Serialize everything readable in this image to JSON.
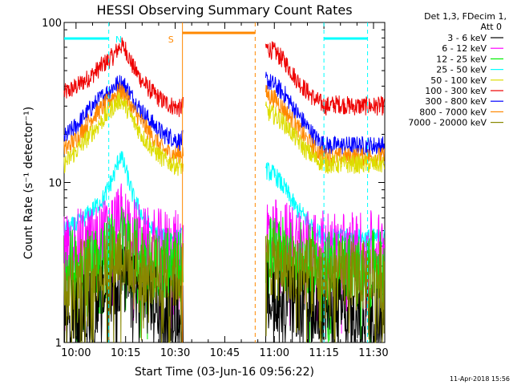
{
  "chart_data": {
    "type": "line",
    "title": "HESSI Observing Summary Count Rates",
    "xlabel": "Start Time (03-Jun-16 09:56:22)",
    "ylabel": "Count Rate (s⁻¹ detector⁻¹)",
    "y_scale": "log",
    "ylim": [
      1,
      100
    ],
    "xlim_minutes_after_0956": [
      0,
      97
    ],
    "x_ticks": [
      {
        "label": "10:00",
        "t": 3.6
      },
      {
        "label": "10:15",
        "t": 18.6
      },
      {
        "label": "10:30",
        "t": 33.6
      },
      {
        "label": "10:45",
        "t": 48.6
      },
      {
        "label": "11:00",
        "t": 63.6
      },
      {
        "label": "11:15",
        "t": 78.6
      },
      {
        "label": "11:30",
        "t": 93.6
      }
    ],
    "y_ticks": [
      {
        "label": "1",
        "v": 1
      },
      {
        "label": "10",
        "v": 10
      },
      {
        "label": "100",
        "v": 100
      }
    ],
    "legend": {
      "placement": "top-right",
      "header": [
        "Det 1,3, FDecim 1,",
        "Att 0"
      ],
      "entries": [
        {
          "name": "3 - 6 keV",
          "color": "#000000"
        },
        {
          "name": "6 - 12 keV",
          "color": "#ff00ff"
        },
        {
          "name": "12 - 25 keV",
          "color": "#00ee00"
        },
        {
          "name": "25 - 50 keV",
          "color": "#00ffff"
        },
        {
          "name": "50 - 100 keV",
          "color": "#dddd00"
        },
        {
          "name": "100 - 300 keV",
          "color": "#ee0000"
        },
        {
          "name": "300 - 800 keV",
          "color": "#0000ff"
        },
        {
          "name": "800 - 7000 keV",
          "color": "#ff8800"
        },
        {
          "name": "7000 - 20000 keV",
          "color": "#888800"
        }
      ]
    },
    "segments": [
      [
        0,
        36
      ],
      [
        61,
        97
      ]
    ],
    "series": [
      {
        "name": "100 - 300 keV",
        "color": "#ee0000",
        "points": [
          [
            0,
            36
          ],
          [
            4,
            40
          ],
          [
            8,
            46
          ],
          [
            12,
            55
          ],
          [
            15,
            62
          ],
          [
            17,
            72
          ],
          [
            18.6,
            68
          ],
          [
            21,
            52
          ],
          [
            24,
            42
          ],
          [
            27,
            36
          ],
          [
            30,
            32
          ],
          [
            33,
            30
          ],
          [
            35,
            29
          ],
          [
            61,
            70
          ],
          [
            64,
            65
          ],
          [
            67,
            56
          ],
          [
            70,
            45
          ],
          [
            73,
            38
          ],
          [
            76,
            33
          ],
          [
            79,
            30
          ],
          [
            83,
            31
          ],
          [
            87,
            30
          ],
          [
            91,
            30
          ],
          [
            97,
            30
          ]
        ]
      },
      {
        "name": "300 - 800 keV",
        "color": "#0000ff",
        "points": [
          [
            0,
            19
          ],
          [
            4,
            23
          ],
          [
            8,
            29
          ],
          [
            12,
            35
          ],
          [
            15,
            40
          ],
          [
            17,
            42
          ],
          [
            18.6,
            40
          ],
          [
            21,
            33
          ],
          [
            24,
            27
          ],
          [
            27,
            23
          ],
          [
            30,
            20
          ],
          [
            33,
            19
          ],
          [
            35,
            18
          ],
          [
            61,
            44
          ],
          [
            64,
            40
          ],
          [
            67,
            35
          ],
          [
            70,
            28
          ],
          [
            73,
            23
          ],
          [
            76,
            19
          ],
          [
            79,
            17
          ],
          [
            83,
            17
          ],
          [
            87,
            17
          ],
          [
            91,
            17
          ],
          [
            97,
            17
          ]
        ]
      },
      {
        "name": "800 - 7000 keV",
        "color": "#ff8800",
        "points": [
          [
            0,
            16
          ],
          [
            4,
            19
          ],
          [
            8,
            25
          ],
          [
            12,
            30
          ],
          [
            15,
            35
          ],
          [
            17,
            37
          ],
          [
            18.6,
            35
          ],
          [
            21,
            28
          ],
          [
            24,
            23
          ],
          [
            27,
            19
          ],
          [
            30,
            16
          ],
          [
            33,
            15
          ],
          [
            35,
            15
          ],
          [
            61,
            36
          ],
          [
            64,
            33
          ],
          [
            67,
            28
          ],
          [
            70,
            23
          ],
          [
            73,
            19
          ],
          [
            76,
            16
          ],
          [
            79,
            14.5
          ],
          [
            83,
            14.5
          ],
          [
            87,
            14.5
          ],
          [
            91,
            14.5
          ],
          [
            97,
            14.5
          ]
        ]
      },
      {
        "name": "50 - 100 keV",
        "color": "#dddd00",
        "points": [
          [
            0,
            13
          ],
          [
            4,
            16
          ],
          [
            8,
            20
          ],
          [
            12,
            25
          ],
          [
            15,
            30
          ],
          [
            17,
            33
          ],
          [
            18.6,
            30
          ],
          [
            21,
            24
          ],
          [
            24,
            19
          ],
          [
            27,
            16
          ],
          [
            30,
            14
          ],
          [
            33,
            13
          ],
          [
            35,
            12.5
          ],
          [
            61,
            28
          ],
          [
            64,
            26
          ],
          [
            67,
            23
          ],
          [
            70,
            19
          ],
          [
            73,
            16
          ],
          [
            76,
            14
          ],
          [
            79,
            13
          ],
          [
            83,
            13
          ],
          [
            87,
            13
          ],
          [
            91,
            13
          ],
          [
            97,
            13
          ]
        ]
      },
      {
        "name": "25 - 50 keV",
        "color": "#00ffff",
        "points": [
          [
            0,
            5
          ],
          [
            4,
            5.5
          ],
          [
            8,
            6.5
          ],
          [
            12,
            8
          ],
          [
            15,
            11
          ],
          [
            17,
            15
          ],
          [
            18.6,
            12
          ],
          [
            21,
            8
          ],
          [
            24,
            6
          ],
          [
            27,
            5
          ],
          [
            30,
            4.5
          ],
          [
            33,
            4.5
          ],
          [
            35,
            4.5
          ],
          [
            61,
            12
          ],
          [
            64,
            11
          ],
          [
            67,
            9
          ],
          [
            70,
            7
          ],
          [
            73,
            6
          ],
          [
            76,
            5
          ],
          [
            79,
            4.5
          ],
          [
            83,
            4.5
          ],
          [
            87,
            4.5
          ],
          [
            91,
            4.5
          ],
          [
            97,
            4.5
          ]
        ]
      },
      {
        "name": "6 - 12 keV",
        "color": "#ff00ff",
        "points": [
          [
            0,
            4
          ],
          [
            8,
            4.2
          ],
          [
            14,
            5
          ],
          [
            17,
            6
          ],
          [
            18.6,
            5.5
          ],
          [
            24,
            4.2
          ],
          [
            35,
            4
          ],
          [
            61,
            5
          ],
          [
            67,
            4.6
          ],
          [
            73,
            4.2
          ],
          [
            79,
            4
          ],
          [
            97,
            4
          ]
        ]
      },
      {
        "name": "12 - 25 keV",
        "color": "#00ee00",
        "points": [
          [
            0,
            3
          ],
          [
            8,
            3.2
          ],
          [
            14,
            3.8
          ],
          [
            17,
            4.5
          ],
          [
            18.6,
            4.2
          ],
          [
            24,
            3.3
          ],
          [
            35,
            3
          ],
          [
            61,
            3.8
          ],
          [
            67,
            3.6
          ],
          [
            73,
            3.3
          ],
          [
            79,
            3
          ],
          [
            97,
            3
          ]
        ]
      },
      {
        "name": "3 - 6 keV",
        "color": "#000000",
        "points": [
          [
            0,
            1.5
          ],
          [
            8,
            1.7
          ],
          [
            14,
            2.2
          ],
          [
            17,
            2.5
          ],
          [
            18.6,
            2.4
          ],
          [
            24,
            1.9
          ],
          [
            35,
            1.6
          ],
          [
            61,
            2
          ],
          [
            67,
            1.9
          ],
          [
            73,
            1.7
          ],
          [
            79,
            1.6
          ],
          [
            97,
            1.5
          ]
        ]
      },
      {
        "name": "7000 - 20000 keV",
        "color": "#888800",
        "points": [
          [
            0,
            2.6
          ],
          [
            8,
            2.8
          ],
          [
            14,
            3.2
          ],
          [
            17,
            3.6
          ],
          [
            18.6,
            3.4
          ],
          [
            24,
            2.9
          ],
          [
            35,
            2.6
          ],
          [
            61,
            3.2
          ],
          [
            67,
            3
          ],
          [
            73,
            2.8
          ],
          [
            79,
            2.6
          ],
          [
            97,
            2.6
          ]
        ]
      }
    ],
    "annotations": {
      "night_bars": [
        [
          0,
          13.5
        ],
        [
          78.6,
          91.8
        ]
      ],
      "saa_bar": [
        35.8,
        57.8
      ],
      "markers": [
        {
          "text": "N",
          "t": 16.5,
          "color": "#00ffff"
        },
        {
          "text": "S",
          "t": 32.3,
          "color": "#ff8800"
        }
      ],
      "cyan_lines": [
        13.5,
        78.6,
        91.8
      ],
      "orange_lines": [
        35.8,
        57.8
      ]
    },
    "footer_timestamp": "11-Apr-2018 15:56"
  }
}
